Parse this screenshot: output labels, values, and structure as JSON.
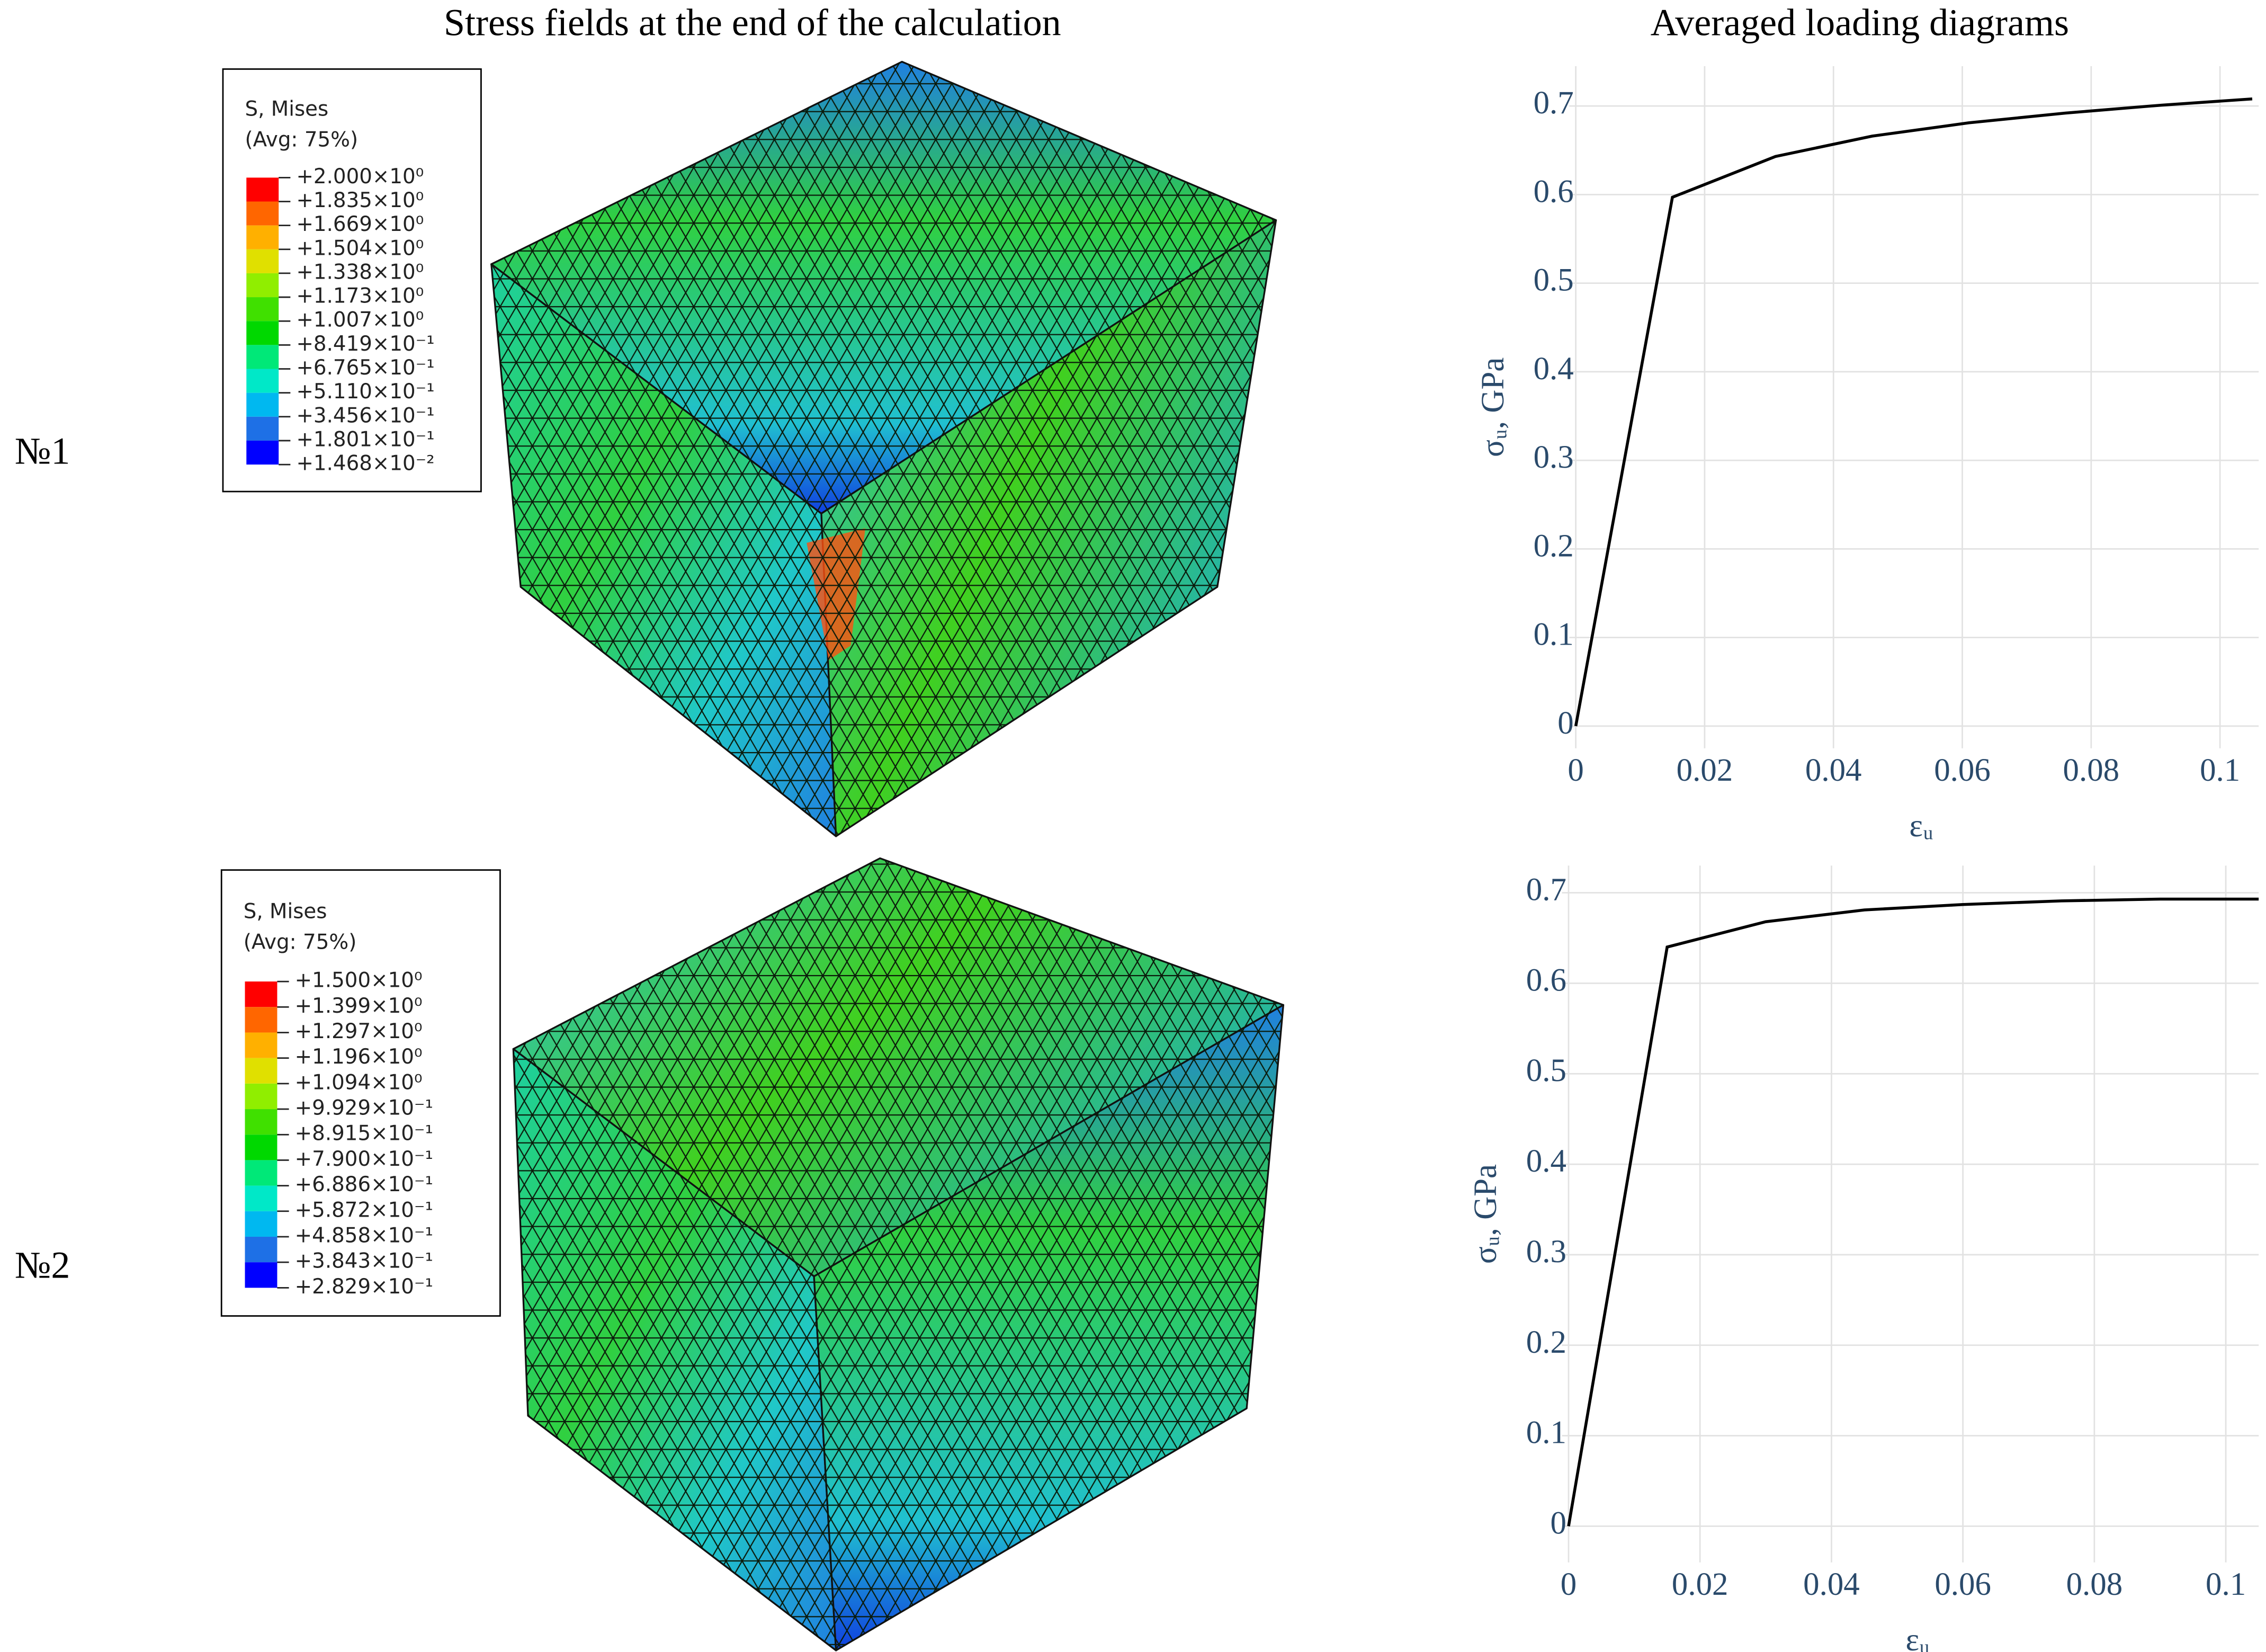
{
  "titles": {
    "left": "Stress fields at the end of the calculation",
    "right": "Averaged loading diagrams"
  },
  "rows": [
    "№1",
    "№2"
  ],
  "legends": [
    {
      "title": "S, Mises",
      "subtitle": "(Avg: 75%)",
      "colors": [
        "#ff0000",
        "#ff6600",
        "#ffb000",
        "#e0e000",
        "#90ee00",
        "#40e000",
        "#00d800",
        "#00e878",
        "#00e8c8",
        "#00b8f0",
        "#1e70e6",
        "#0000ff"
      ],
      "labels": [
        "+2.000×10⁰",
        "+1.835×10⁰",
        "+1.669×10⁰",
        "+1.504×10⁰",
        "+1.338×10⁰",
        "+1.173×10⁰",
        "+1.007×10⁰",
        "+8.419×10⁻¹",
        "+6.765×10⁻¹",
        "+5.110×10⁻¹",
        "+3.456×10⁻¹",
        "+1.801×10⁻¹",
        "+1.468×10⁻²"
      ]
    },
    {
      "title": "S, Mises",
      "subtitle": "(Avg: 75%)",
      "colors": [
        "#ff0000",
        "#ff6600",
        "#ffb000",
        "#e0e000",
        "#90ee00",
        "#40e000",
        "#00d800",
        "#00e878",
        "#00e8c8",
        "#00b8f0",
        "#1e70e6",
        "#0000ff"
      ],
      "labels": [
        "+1.500×10⁰",
        "+1.399×10⁰",
        "+1.297×10⁰",
        "+1.196×10⁰",
        "+1.094×10⁰",
        "+9.929×10⁻¹",
        "+8.915×10⁻¹",
        "+7.900×10⁻¹",
        "+6.886×10⁻¹",
        "+5.872×10⁻¹",
        "+4.858×10⁻¹",
        "+3.843×10⁻¹",
        "+2.829×10⁻¹"
      ]
    }
  ],
  "chart_data": [
    {
      "type": "line",
      "xlabel": "εᵤ",
      "ylabel": "σᵤ, GPa",
      "x": [
        0,
        0.015,
        0.031,
        0.046,
        0.061,
        0.076,
        0.091,
        0.105
      ],
      "series": [
        {
          "color": "#000000",
          "values": [
            0,
            0.597,
            0.643,
            0.666,
            0.681,
            0.692,
            0.701,
            0.708
          ]
        }
      ],
      "xlim": [
        -0.001,
        0.106
      ],
      "ylim": [
        -0.025,
        0.745
      ],
      "xticks": [
        0,
        0.02,
        0.04,
        0.06,
        0.08,
        0.1
      ],
      "yticks": [
        0,
        0.1,
        0.2,
        0.3,
        0.4,
        0.5,
        0.6,
        0.7
      ],
      "grid": true
    },
    {
      "type": "line",
      "xlabel": "εᵤ",
      "ylabel": "σᵤ, GPa",
      "x": [
        0,
        0.015,
        0.03,
        0.045,
        0.06,
        0.075,
        0.09,
        0.105
      ],
      "series": [
        {
          "color": "#000000",
          "values": [
            0,
            0.64,
            0.668,
            0.681,
            0.687,
            0.691,
            0.693,
            0.693
          ]
        }
      ],
      "xlim": [
        -0.001,
        0.105
      ],
      "ylim": [
        -0.04,
        0.73
      ],
      "xticks": [
        0,
        0.02,
        0.04,
        0.06,
        0.08,
        0.1
      ],
      "yticks": [
        0,
        0.1,
        0.2,
        0.3,
        0.4,
        0.5,
        0.6,
        0.7
      ],
      "grid": true
    }
  ]
}
